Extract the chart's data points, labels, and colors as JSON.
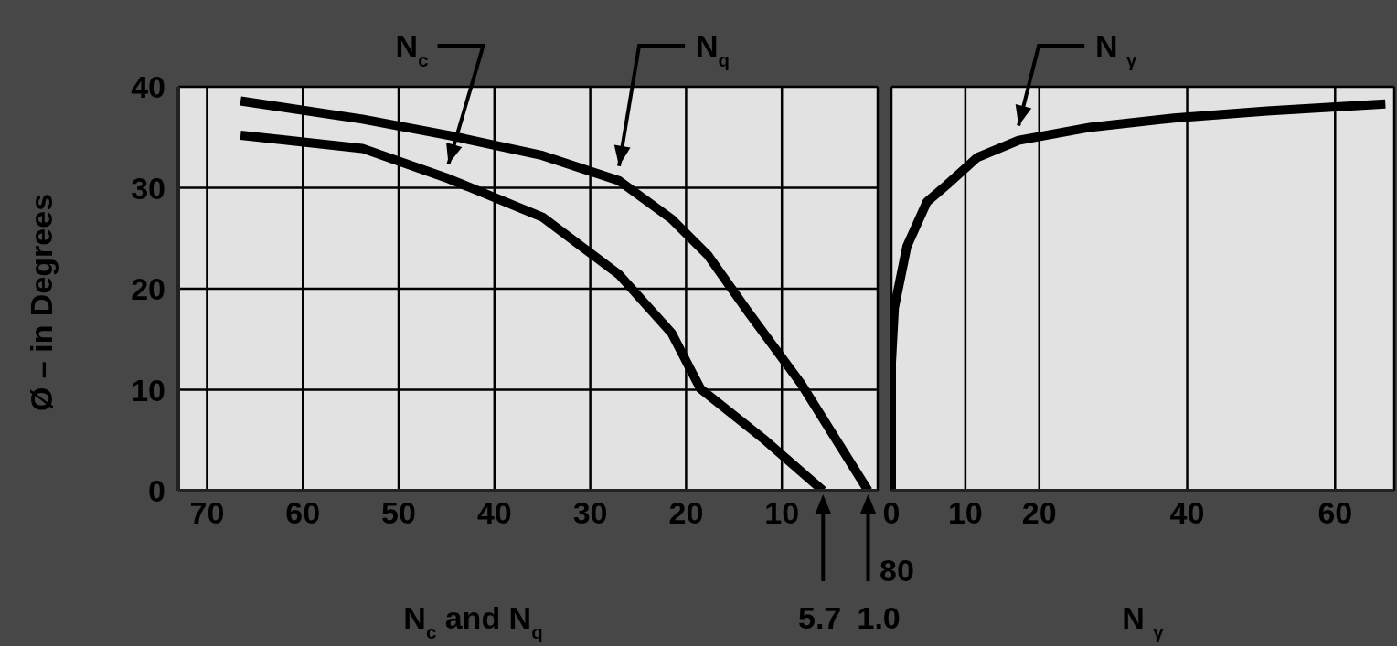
{
  "chart_data": [
    {
      "type": "line",
      "xlabel": "N$_{c}$ and N$_{q}$",
      "ylabel": "Ø – in Degrees",
      "xlim": [
        73,
        0
      ],
      "xticks": [
        70,
        60,
        50,
        40,
        30,
        20,
        10
      ],
      "ylim": [
        0,
        40
      ],
      "yticks": [
        0,
        10,
        20,
        30,
        40
      ],
      "grid": true,
      "series": [
        {
          "name": "N$_{c}$",
          "color": "#000000",
          "x": [
            5.7,
            12,
            18.5,
            21.5,
            27,
            35,
            44.8,
            53.8,
            66.5
          ],
          "values": [
            0,
            5.2,
            10.1,
            15.6,
            21.4,
            27.1,
            30.9,
            33.9,
            35.2
          ]
        },
        {
          "name": "N$_{q}$",
          "color": "#000000",
          "x": [
            1.0,
            8,
            13.6,
            17.7,
            21.5,
            27,
            35,
            44.8,
            53.8,
            66.5
          ],
          "values": [
            0,
            10.6,
            17.8,
            23.3,
            26.9,
            30.7,
            33.2,
            35.2,
            36.8,
            38.6
          ]
        }
      ],
      "annotations": [
        "5.7",
        "1.0",
        "80"
      ]
    },
    {
      "type": "line",
      "xlabel": "N $_{γ}$",
      "xlim": [
        0,
        68
      ],
      "xticks": [
        0,
        10,
        20,
        40,
        60
      ],
      "ylim": [
        0,
        40
      ],
      "yticks": [
        0,
        10,
        20,
        30,
        40
      ],
      "grid": true,
      "tick_labels": "x",
      "series": [
        {
          "name": "N $_{γ}$",
          "color": "#000000",
          "x": [
            0,
            0,
            0.4,
            2.1,
            4.8,
            7.5,
            11.6,
            17.2,
            27.0,
            38.2,
            50.8,
            66.8
          ],
          "values": [
            0,
            12.7,
            18.1,
            24.2,
            28.6,
            30.3,
            33.0,
            34.7,
            36.0,
            36.9,
            37.6,
            38.3
          ]
        }
      ]
    }
  ]
}
